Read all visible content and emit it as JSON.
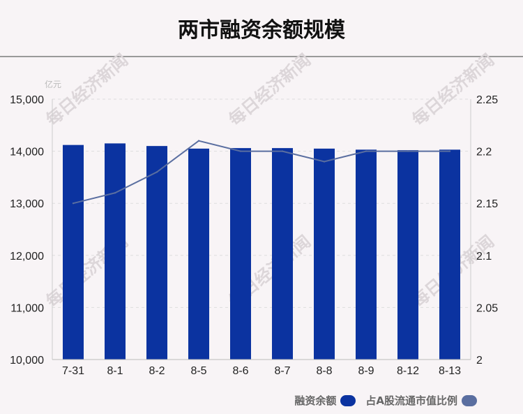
{
  "title": "两市融资余额规模",
  "chart_data": {
    "type": "bar",
    "categories": [
      "7-31",
      "8-1",
      "8-2",
      "8-5",
      "8-6",
      "8-7",
      "8-8",
      "8-9",
      "8-12",
      "8-13"
    ],
    "series": [
      {
        "name": "融资余额",
        "type": "bar",
        "axis": "left",
        "color": "#0b33a0",
        "values": [
          14120,
          14150,
          14100,
          14050,
          14060,
          14060,
          14050,
          14030,
          14020,
          14030
        ]
      },
      {
        "name": "占A股流通市值比例",
        "type": "line",
        "axis": "right",
        "color": "#5a6ea0",
        "values": [
          2.15,
          2.16,
          2.18,
          2.21,
          2.2,
          2.2,
          2.19,
          2.2,
          2.2,
          2.2
        ]
      }
    ],
    "y_left": {
      "unit": "亿元",
      "ylim": [
        10000,
        15000
      ],
      "ticks": [
        "10,000",
        "11,000",
        "12,000",
        "13,000",
        "14,000",
        "15,000"
      ]
    },
    "y_right": {
      "ylim": [
        2,
        2.25
      ],
      "ticks": [
        "2",
        "2.05",
        "2.1",
        "2.15",
        "2.2",
        "2.25"
      ]
    },
    "grid": true,
    "legend_position": "bottom-right"
  },
  "watermark": "每日经济新闻"
}
